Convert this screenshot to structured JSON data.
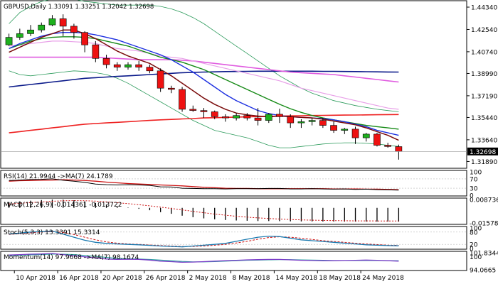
{
  "main_panel": {
    "title": "GBPUSD,Daily  1.33091 1.33251 1.32042 1.32698",
    "price_ticks": [
      "1.44340",
      "1.42540",
      "1.40740",
      "1.38990",
      "1.37190",
      "1.35440",
      "1.33640",
      "1.31890"
    ],
    "current_price": "1.32698",
    "colors": {
      "bull": "#1db01d",
      "bear": "#ee1111",
      "ma_fast": "#7a0b0b",
      "ma_blue": "#1c2fe0",
      "ma_green": "#168a16",
      "ma_magenta": "#e05ce0",
      "ma_navy": "#0b1a8a",
      "ma_red": "#ee2020",
      "bands": "#2a9a5a"
    }
  },
  "rsi_panel": {
    "label": "RSI(14) 21.9944  ->MA(7) 24.1789",
    "ticks": [
      "100",
      "70",
      "30",
      "0"
    ],
    "colors": {
      "rsi": "#000000",
      "ma": "#cc1111"
    }
  },
  "macd_panel": {
    "label": "MACD(12,26,9) -0.014361 -0.013722",
    "ticks": [
      "0.008736",
      "-0.015789"
    ],
    "colors": {
      "hist": "#000000",
      "signal": "#cc1111"
    }
  },
  "stoch_panel": {
    "label": "Stoch(5,3,3) 13.3391 15.3314",
    "ticks": [
      "100",
      "80",
      "20",
      "0"
    ],
    "colors": {
      "main": "#1a7ab0",
      "signal": "#cc1111"
    }
  },
  "momentum_panel": {
    "label": "Momentum(14) 97.9668  ->MA(7) 98.1674",
    "ticks": [
      "101.8344",
      "100",
      "94.0665"
    ],
    "colors": {
      "momentum": "#7a3dc8",
      "ma": "#2aa0a0"
    }
  },
  "time_axis": {
    "labels": [
      "10 Apr 2018",
      "16 Apr 2018",
      "20 Apr 2018",
      "26 Apr 2018",
      "2 May 2018",
      "8 May 2018",
      "14 May 2018",
      "18 May 2018",
      "24 May 2018"
    ]
  },
  "chart_data": {
    "type": "candlestick",
    "title": "GBPUSD,Daily",
    "dates": [
      "9 Apr 2018",
      "10 Apr 2018",
      "11 Apr 2018",
      "12 Apr 2018",
      "13 Apr 2018",
      "16 Apr 2018",
      "17 Apr 2018",
      "18 Apr 2018",
      "19 Apr 2018",
      "20 Apr 2018",
      "23 Apr 2018",
      "24 Apr 2018",
      "25 Apr 2018",
      "26 Apr 2018",
      "27 Apr 2018",
      "30 Apr 2018",
      "1 May 2018",
      "2 May 2018",
      "3 May 2018",
      "4 May 2018",
      "7 May 2018",
      "8 May 2018",
      "9 May 2018",
      "10 May 2018",
      "11 May 2018",
      "14 May 2018",
      "15 May 2018",
      "16 May 2018",
      "17 May 2018",
      "18 May 2018",
      "21 May 2018",
      "22 May 2018",
      "23 May 2018",
      "24 May 2018",
      "25 May 2018",
      "28 May 2018",
      "29 May 2018"
    ],
    "ohlc": [
      [
        1.413,
        1.422,
        1.412,
        1.419
      ],
      [
        1.419,
        1.426,
        1.417,
        1.422
      ],
      [
        1.422,
        1.429,
        1.42,
        1.425
      ],
      [
        1.425,
        1.431,
        1.423,
        1.429
      ],
      [
        1.429,
        1.437,
        1.428,
        1.434
      ],
      [
        1.434,
        1.4376,
        1.42,
        1.428
      ],
      [
        1.428,
        1.43,
        1.418,
        1.423
      ],
      [
        1.423,
        1.424,
        1.407,
        1.413
      ],
      [
        1.413,
        1.416,
        1.399,
        1.402
      ],
      [
        1.402,
        1.405,
        1.394,
        1.397
      ],
      [
        1.397,
        1.399,
        1.392,
        1.395
      ],
      [
        1.395,
        1.399,
        1.393,
        1.397
      ],
      [
        1.397,
        1.4,
        1.392,
        1.395
      ],
      [
        1.395,
        1.397,
        1.39,
        1.392
      ],
      [
        1.392,
        1.394,
        1.375,
        1.378
      ],
      [
        1.378,
        1.38,
        1.374,
        1.377
      ],
      [
        1.377,
        1.379,
        1.359,
        1.361
      ],
      [
        1.361,
        1.364,
        1.359,
        1.36
      ],
      [
        1.36,
        1.362,
        1.354,
        1.359
      ],
      [
        1.359,
        1.36,
        1.353,
        1.355
      ],
      [
        1.355,
        1.357,
        1.351,
        1.354
      ],
      [
        1.354,
        1.358,
        1.352,
        1.356
      ],
      [
        1.356,
        1.358,
        1.352,
        1.354
      ],
      [
        1.354,
        1.362,
        1.348,
        1.352
      ],
      [
        1.352,
        1.358,
        1.35,
        1.357
      ],
      [
        1.357,
        1.3615,
        1.35,
        1.355
      ],
      [
        1.355,
        1.357,
        1.346,
        1.35
      ],
      [
        1.35,
        1.353,
        1.346,
        1.351
      ],
      [
        1.351,
        1.354,
        1.348,
        1.352
      ],
      [
        1.352,
        1.354,
        1.346,
        1.348
      ],
      [
        1.348,
        1.351,
        1.342,
        1.344
      ],
      [
        1.344,
        1.346,
        1.341,
        1.345
      ],
      [
        1.345,
        1.347,
        1.333,
        1.338
      ],
      [
        1.338,
        1.342,
        1.335,
        1.341
      ],
      [
        1.341,
        1.342,
        1.331,
        1.332
      ],
      [
        1.332,
        1.334,
        1.33,
        1.331
      ],
      [
        1.3309,
        1.3325,
        1.3204,
        1.327
      ]
    ],
    "yrange": [
      1.314,
      1.448
    ],
    "ma_fast": [
      1.407,
      1.411,
      1.415,
      1.419,
      1.422,
      1.425,
      1.425,
      1.422,
      1.418,
      1.413,
      1.408,
      1.404,
      1.401,
      1.398,
      1.393,
      1.388,
      1.382,
      1.376,
      1.37,
      1.365,
      1.361,
      1.358,
      1.3565,
      1.3555,
      1.355,
      1.3555,
      1.355,
      1.3545,
      1.354,
      1.353,
      1.3515,
      1.35,
      1.3485,
      1.346,
      1.343,
      1.34,
      1.336
    ],
    "ma_blue": [
      1.41,
      1.414,
      1.417,
      1.42,
      1.422,
      1.423,
      1.423,
      1.4225,
      1.421,
      1.419,
      1.417,
      1.414,
      1.411,
      1.408,
      1.405,
      1.401,
      1.396,
      1.391,
      1.385,
      1.379,
      1.373,
      1.368,
      1.364,
      1.36,
      1.3575,
      1.356,
      1.355,
      1.3545,
      1.354,
      1.3535,
      1.3525,
      1.351,
      1.349,
      1.347,
      1.344,
      1.342,
      1.34
    ],
    "ma_green": [
      1.41,
      1.413,
      1.416,
      1.418,
      1.419,
      1.4195,
      1.4195,
      1.419,
      1.418,
      1.416,
      1.414,
      1.412,
      1.409,
      1.406,
      1.403,
      1.401,
      1.399,
      1.396,
      1.393,
      1.389,
      1.385,
      1.381,
      1.377,
      1.373,
      1.369,
      1.365,
      1.3615,
      1.3585,
      1.356,
      1.354,
      1.3525,
      1.351,
      1.3495,
      1.348,
      1.347,
      1.346,
      1.345
    ],
    "ma_magenta": [
      1.403,
      1.403,
      1.403,
      1.403,
      1.403,
      1.403,
      1.403,
      1.403,
      1.403,
      1.4025,
      1.402,
      1.4015,
      1.401,
      1.401,
      1.401,
      1.401,
      1.4005,
      1.4,
      1.399,
      1.398,
      1.397,
      1.396,
      1.395,
      1.394,
      1.393,
      1.392,
      1.391,
      1.3905,
      1.39,
      1.3895,
      1.389,
      1.388,
      1.387,
      1.386,
      1.385,
      1.384,
      1.383
    ],
    "ma_magenta_short": [
      1.412,
      1.413,
      1.414,
      1.415,
      1.416,
      1.416,
      1.4155,
      1.415,
      1.414,
      1.412,
      1.41,
      1.409,
      1.408,
      1.406,
      1.404,
      1.403,
      1.402,
      1.4,
      1.398,
      1.396,
      1.394,
      1.392,
      1.39,
      1.388,
      1.386,
      1.384,
      1.381,
      1.378,
      1.376,
      1.374,
      1.372,
      1.37,
      1.368,
      1.366,
      1.364,
      1.362,
      1.361
    ],
    "ma_navy": [
      1.379,
      1.38,
      1.381,
      1.382,
      1.383,
      1.384,
      1.385,
      1.386,
      1.3865,
      1.387,
      1.3875,
      1.388,
      1.3885,
      1.389,
      1.3895,
      1.39,
      1.3905,
      1.3908,
      1.391,
      1.3912,
      1.3914,
      1.3915,
      1.3916,
      1.3917,
      1.3917,
      1.3917,
      1.3917,
      1.3917,
      1.3917,
      1.3916,
      1.3916,
      1.3915,
      1.3914,
      1.3913,
      1.3912,
      1.3911,
      1.391
    ],
    "ma_red": [
      1.342,
      1.343,
      1.344,
      1.345,
      1.346,
      1.347,
      1.348,
      1.349,
      1.3495,
      1.35,
      1.3505,
      1.351,
      1.3515,
      1.352,
      1.3525,
      1.3528,
      1.3532,
      1.3535,
      1.354,
      1.3542,
      1.3545,
      1.3547,
      1.3549,
      1.3551,
      1.3553,
      1.3555,
      1.3557,
      1.3558,
      1.356,
      1.3561,
      1.3562,
      1.3563,
      1.3564,
      1.3565,
      1.3566,
      1.3567,
      1.3568
    ],
    "bb_upper": [
      1.43,
      1.439,
      1.444,
      1.448,
      1.45,
      1.451,
      1.45,
      1.448,
      1.447,
      1.446,
      1.445,
      1.445,
      1.445,
      1.445,
      1.444,
      1.442,
      1.439,
      1.435,
      1.43,
      1.424,
      1.418,
      1.412,
      1.406,
      1.4,
      1.394,
      1.388,
      1.383,
      1.378,
      1.374,
      1.371,
      1.368,
      1.366,
      1.364,
      1.3625,
      1.361,
      1.36,
      1.359
    ],
    "bb_lower": [
      1.392,
      1.389,
      1.388,
      1.389,
      1.39,
      1.391,
      1.392,
      1.3915,
      1.3905,
      1.389,
      1.386,
      1.382,
      1.377,
      1.372,
      1.367,
      1.362,
      1.357,
      1.352,
      1.348,
      1.344,
      1.342,
      1.34,
      1.338,
      1.335,
      1.332,
      1.33,
      1.33,
      1.331,
      1.332,
      1.333,
      1.3335,
      1.334,
      1.334,
      1.3335,
      1.333,
      1.332,
      1.331
    ],
    "rsi": [
      63,
      65,
      67,
      68,
      70,
      64,
      60,
      55,
      48,
      45,
      44,
      45,
      44,
      42,
      36,
      35,
      30,
      29,
      28,
      28,
      27,
      28,
      28,
      28,
      29,
      29,
      27,
      27,
      28,
      27,
      26,
      27,
      25,
      26,
      24,
      23,
      22
    ],
    "rsi_ma": [
      60,
      62,
      63,
      64,
      65,
      66,
      65,
      63,
      60,
      56,
      53,
      50,
      48,
      46,
      44,
      42,
      40,
      37,
      34,
      32,
      30,
      29,
      29,
      28,
      28,
      28,
      28,
      28,
      28,
      28,
      27,
      27,
      27,
      26,
      26,
      25,
      24
    ],
    "macd_hist": [
      0.006,
      0.0068,
      0.0075,
      0.0082,
      0.0087,
      0.0086,
      0.008,
      0.0068,
      0.0052,
      0.0035,
      0.0018,
      0.0004,
      -0.001,
      -0.0025,
      -0.0045,
      -0.0062,
      -0.0082,
      -0.0098,
      -0.011,
      -0.012,
      -0.0127,
      -0.0132,
      -0.0135,
      -0.0138,
      -0.0138,
      -0.0139,
      -0.0141,
      -0.0142,
      -0.0142,
      -0.0143,
      -0.0143,
      -0.0144,
      -0.0144,
      -0.0144,
      -0.0144,
      -0.0144,
      -0.0144
    ],
    "macd_signal": [
      0.004,
      0.0048,
      0.0055,
      0.0062,
      0.0069,
      0.0074,
      0.0076,
      0.0075,
      0.007,
      0.0063,
      0.0054,
      0.0044,
      0.0033,
      0.0021,
      0.0008,
      -0.0006,
      -0.0021,
      -0.0037,
      -0.0051,
      -0.0065,
      -0.0077,
      -0.0088,
      -0.0097,
      -0.0105,
      -0.0112,
      -0.0117,
      -0.0122,
      -0.0126,
      -0.0129,
      -0.0131,
      -0.0133,
      -0.0135,
      -0.0136,
      -0.0136,
      -0.0137,
      -0.0137,
      -0.0137
    ],
    "macd_range": [
      -0.015789,
      0.008736
    ],
    "stoch_main": [
      70,
      75,
      80,
      82,
      85,
      70,
      55,
      40,
      30,
      25,
      22,
      20,
      18,
      15,
      12,
      10,
      8,
      12,
      16,
      20,
      25,
      35,
      45,
      55,
      60,
      58,
      50,
      42,
      38,
      34,
      30,
      26,
      22,
      18,
      16,
      14,
      13
    ],
    "stoch_signal": [
      68,
      72,
      76,
      80,
      82,
      78,
      68,
      55,
      42,
      32,
      26,
      22,
      20,
      17,
      14,
      12,
      10,
      10,
      12,
      16,
      20,
      27,
      35,
      45,
      53,
      57,
      55,
      50,
      44,
      38,
      34,
      30,
      26,
      22,
      19,
      16,
      15
    ],
    "momentum": [
      100.8,
      101.0,
      101.2,
      101.3,
      101.5,
      101.0,
      100.5,
      100.0,
      99.5,
      99.0,
      98.8,
      98.9,
      98.8,
      98.5,
      98.0,
      97.8,
      97.5,
      97.6,
      97.8,
      98.0,
      98.2,
      98.4,
      98.6,
      98.7,
      98.8,
      98.8,
      98.6,
      98.4,
      98.3,
      98.2,
      98.2,
      98.3,
      98.4,
      98.5,
      98.4,
      98.2,
      98.0
    ],
    "momentum_ma": [
      100.5,
      100.7,
      100.9,
      101.0,
      101.2,
      101.2,
      101.0,
      100.6,
      100.2,
      99.7,
      99.3,
      99.1,
      99.0,
      98.8,
      98.5,
      98.2,
      97.9,
      97.7,
      97.7,
      97.8,
      98.0,
      98.2,
      98.4,
      98.5,
      98.6,
      98.7,
      98.7,
      98.6,
      98.5,
      98.4,
      98.3,
      98.3,
      98.3,
      98.3,
      98.3,
      98.2,
      98.2
    ],
    "momentum_range": [
      94.0665,
      101.8344
    ]
  }
}
